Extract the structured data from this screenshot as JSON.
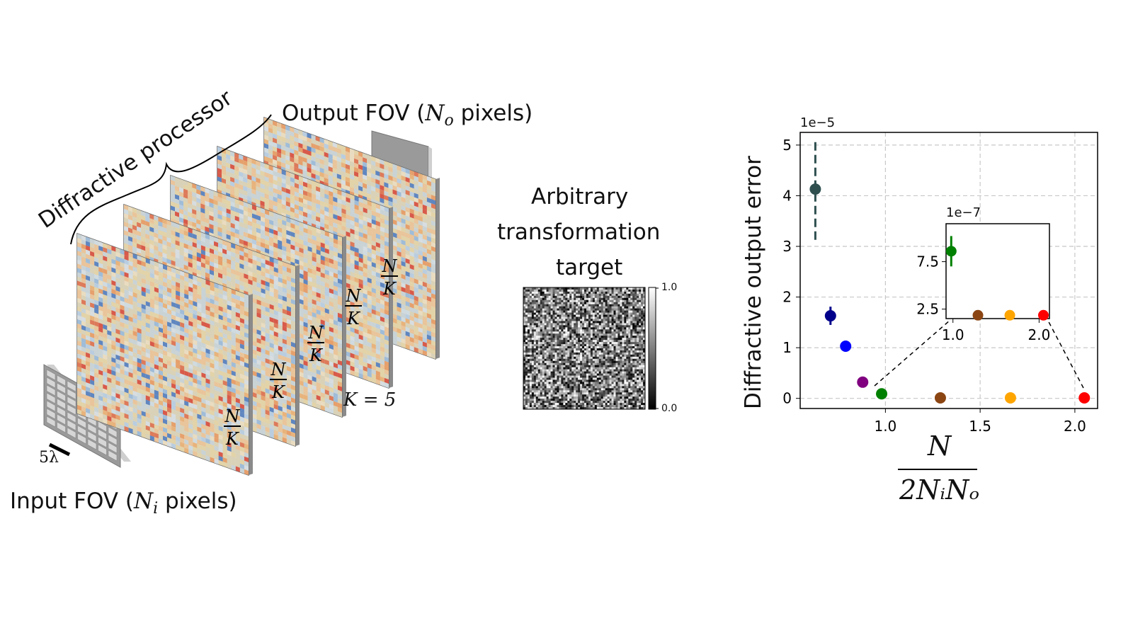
{
  "diagram": {
    "title_processor": "Diffractive processor",
    "input_label": "Input FOV (",
    "input_sym": "N",
    "input_sub": "i",
    "input_tail": " pixels)",
    "output_label": "Output FOV (",
    "output_sym": "N",
    "output_sub": "o",
    "output_tail": " pixels)",
    "layer_label_num": "N",
    "layer_label_den": "K",
    "layer_count": 5,
    "k_label": "K = 5",
    "pixel_pitch": "5λ"
  },
  "target": {
    "line1": "Arbitrary",
    "line2": "transformation",
    "line3": "target",
    "cbar_max": "1.0",
    "cbar_min": "0.0"
  },
  "chart_data": [
    {
      "type": "scatter",
      "ylabel": "Diffractive output error",
      "xlabel_num": "N",
      "xlabel_den": "2NᵢNₒ",
      "y_scale_note": "1e−5",
      "xlim": [
        0.55,
        2.12
      ],
      "ylim": [
        -0.2,
        5.25
      ],
      "xticks": [
        "1.0",
        "1.5",
        "2.0"
      ],
      "yticks": [
        "0",
        "1",
        "2",
        "3",
        "4",
        "5"
      ],
      "grid": true,
      "points": [
        {
          "x": 0.63,
          "y": 4.13,
          "err": 1.0,
          "color": "#2f4f4f",
          "dashed": true
        },
        {
          "x": 0.71,
          "y": 1.63,
          "err": 0.18,
          "color": "#00008b"
        },
        {
          "x": 0.79,
          "y": 1.03,
          "err": 0,
          "color": "#0000ff"
        },
        {
          "x": 0.88,
          "y": 0.32,
          "err": 0,
          "color": "#800080"
        },
        {
          "x": 0.98,
          "y": 0.09,
          "err": 0,
          "color": "#008000"
        },
        {
          "x": 1.29,
          "y": 0.01,
          "err": 0,
          "color": "#8b4513"
        },
        {
          "x": 1.66,
          "y": 0.01,
          "err": 0,
          "color": "#ffa500"
        },
        {
          "x": 2.05,
          "y": 0.01,
          "err": 0,
          "color": "#ff0000"
        }
      ]
    },
    {
      "type": "scatter",
      "inset": true,
      "y_scale_note": "1e−7",
      "xlim": [
        0.92,
        2.12
      ],
      "ylim": [
        1.5,
        11.5
      ],
      "xticks": [
        "1.0",
        "2.0"
      ],
      "yticks": [
        "2.5",
        "7.5"
      ],
      "points": [
        {
          "x": 0.98,
          "y": 8.6,
          "err": 1.6,
          "color": "#008000"
        },
        {
          "x": 1.29,
          "y": 1.85,
          "err": 0,
          "color": "#8b4513"
        },
        {
          "x": 1.66,
          "y": 1.85,
          "err": 0,
          "color": "#ffa500"
        },
        {
          "x": 2.05,
          "y": 1.85,
          "err": 0,
          "color": "#ff0000"
        }
      ]
    }
  ]
}
